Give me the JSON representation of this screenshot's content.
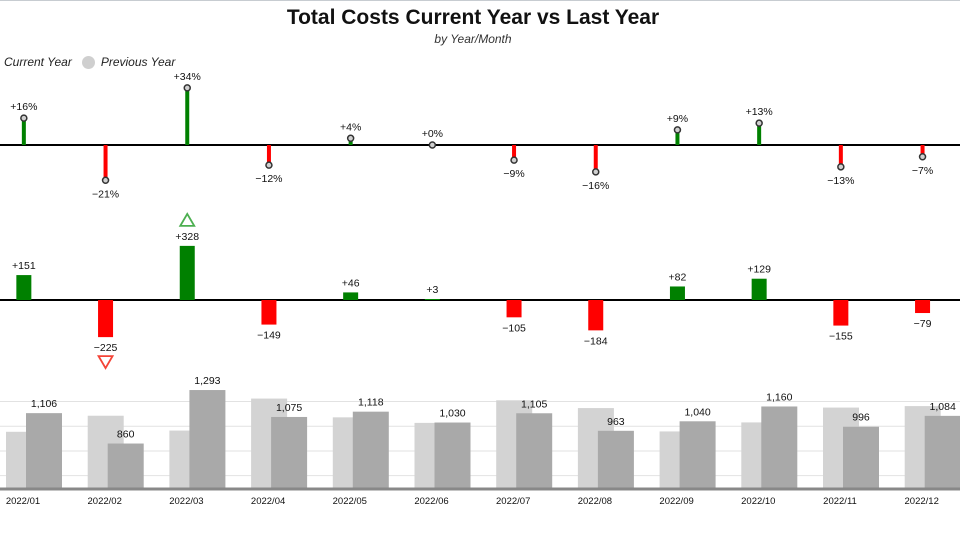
{
  "title": "Total Costs Current Year vs Last Year",
  "subtitle": "by Year/Month",
  "legend": {
    "current": "Current Year",
    "previous": "Previous Year"
  },
  "colors": {
    "positive": "#008000",
    "negative": "#ff0000",
    "current": "#a9a9a9",
    "previous": "#d3d3d3",
    "up_marker": "#4caf50",
    "down_marker": "#f44336"
  },
  "chart_data": {
    "type": "bar",
    "categories": [
      "2022/01",
      "2022/02",
      "2022/03",
      "2022/04",
      "2022/05",
      "2022/06",
      "2022/07",
      "2022/08",
      "2022/09",
      "2022/10",
      "2022/11",
      "2022/12"
    ],
    "series": [
      {
        "name": "Current Year",
        "values": [
          1106,
          860,
          1293,
          1075,
          1118,
          1030,
          1105,
          963,
          1040,
          1160,
          996,
          1084
        ]
      },
      {
        "name": "Previous Year",
        "values": [
          955,
          1085,
          965,
          1224,
          1072,
          1027,
          1210,
          1147,
          958,
          1031,
          1151,
          1163
        ]
      }
    ],
    "variance_abs": [
      151,
      -225,
      328,
      -149,
      46,
      3,
      -105,
      -184,
      82,
      129,
      -155,
      -79
    ],
    "variance_abs_labels": [
      "+151",
      "−225",
      "+328",
      "−149",
      "+46",
      "+3",
      "−105",
      "−184",
      "+82",
      "+129",
      "−155",
      "−79"
    ],
    "variance_pct": [
      16,
      -21,
      34,
      -12,
      4,
      0,
      -9,
      -16,
      9,
      13,
      -13,
      -7
    ],
    "variance_pct_labels": [
      "+16%",
      "−21%",
      "+34%",
      "−12%",
      "+4%",
      "+0%",
      "−9%",
      "−16%",
      "+9%",
      "+13%",
      "−13%",
      "−7%"
    ],
    "value_labels": [
      "1,106",
      "860",
      "1,293",
      "1,075",
      "1,118",
      "1,030",
      "1,105",
      "963",
      "1,040",
      "1,160",
      "996",
      "1,084"
    ],
    "max_index": 2,
    "min_index": 1,
    "ylim": [
      500,
      1350
    ],
    "grid": true
  }
}
